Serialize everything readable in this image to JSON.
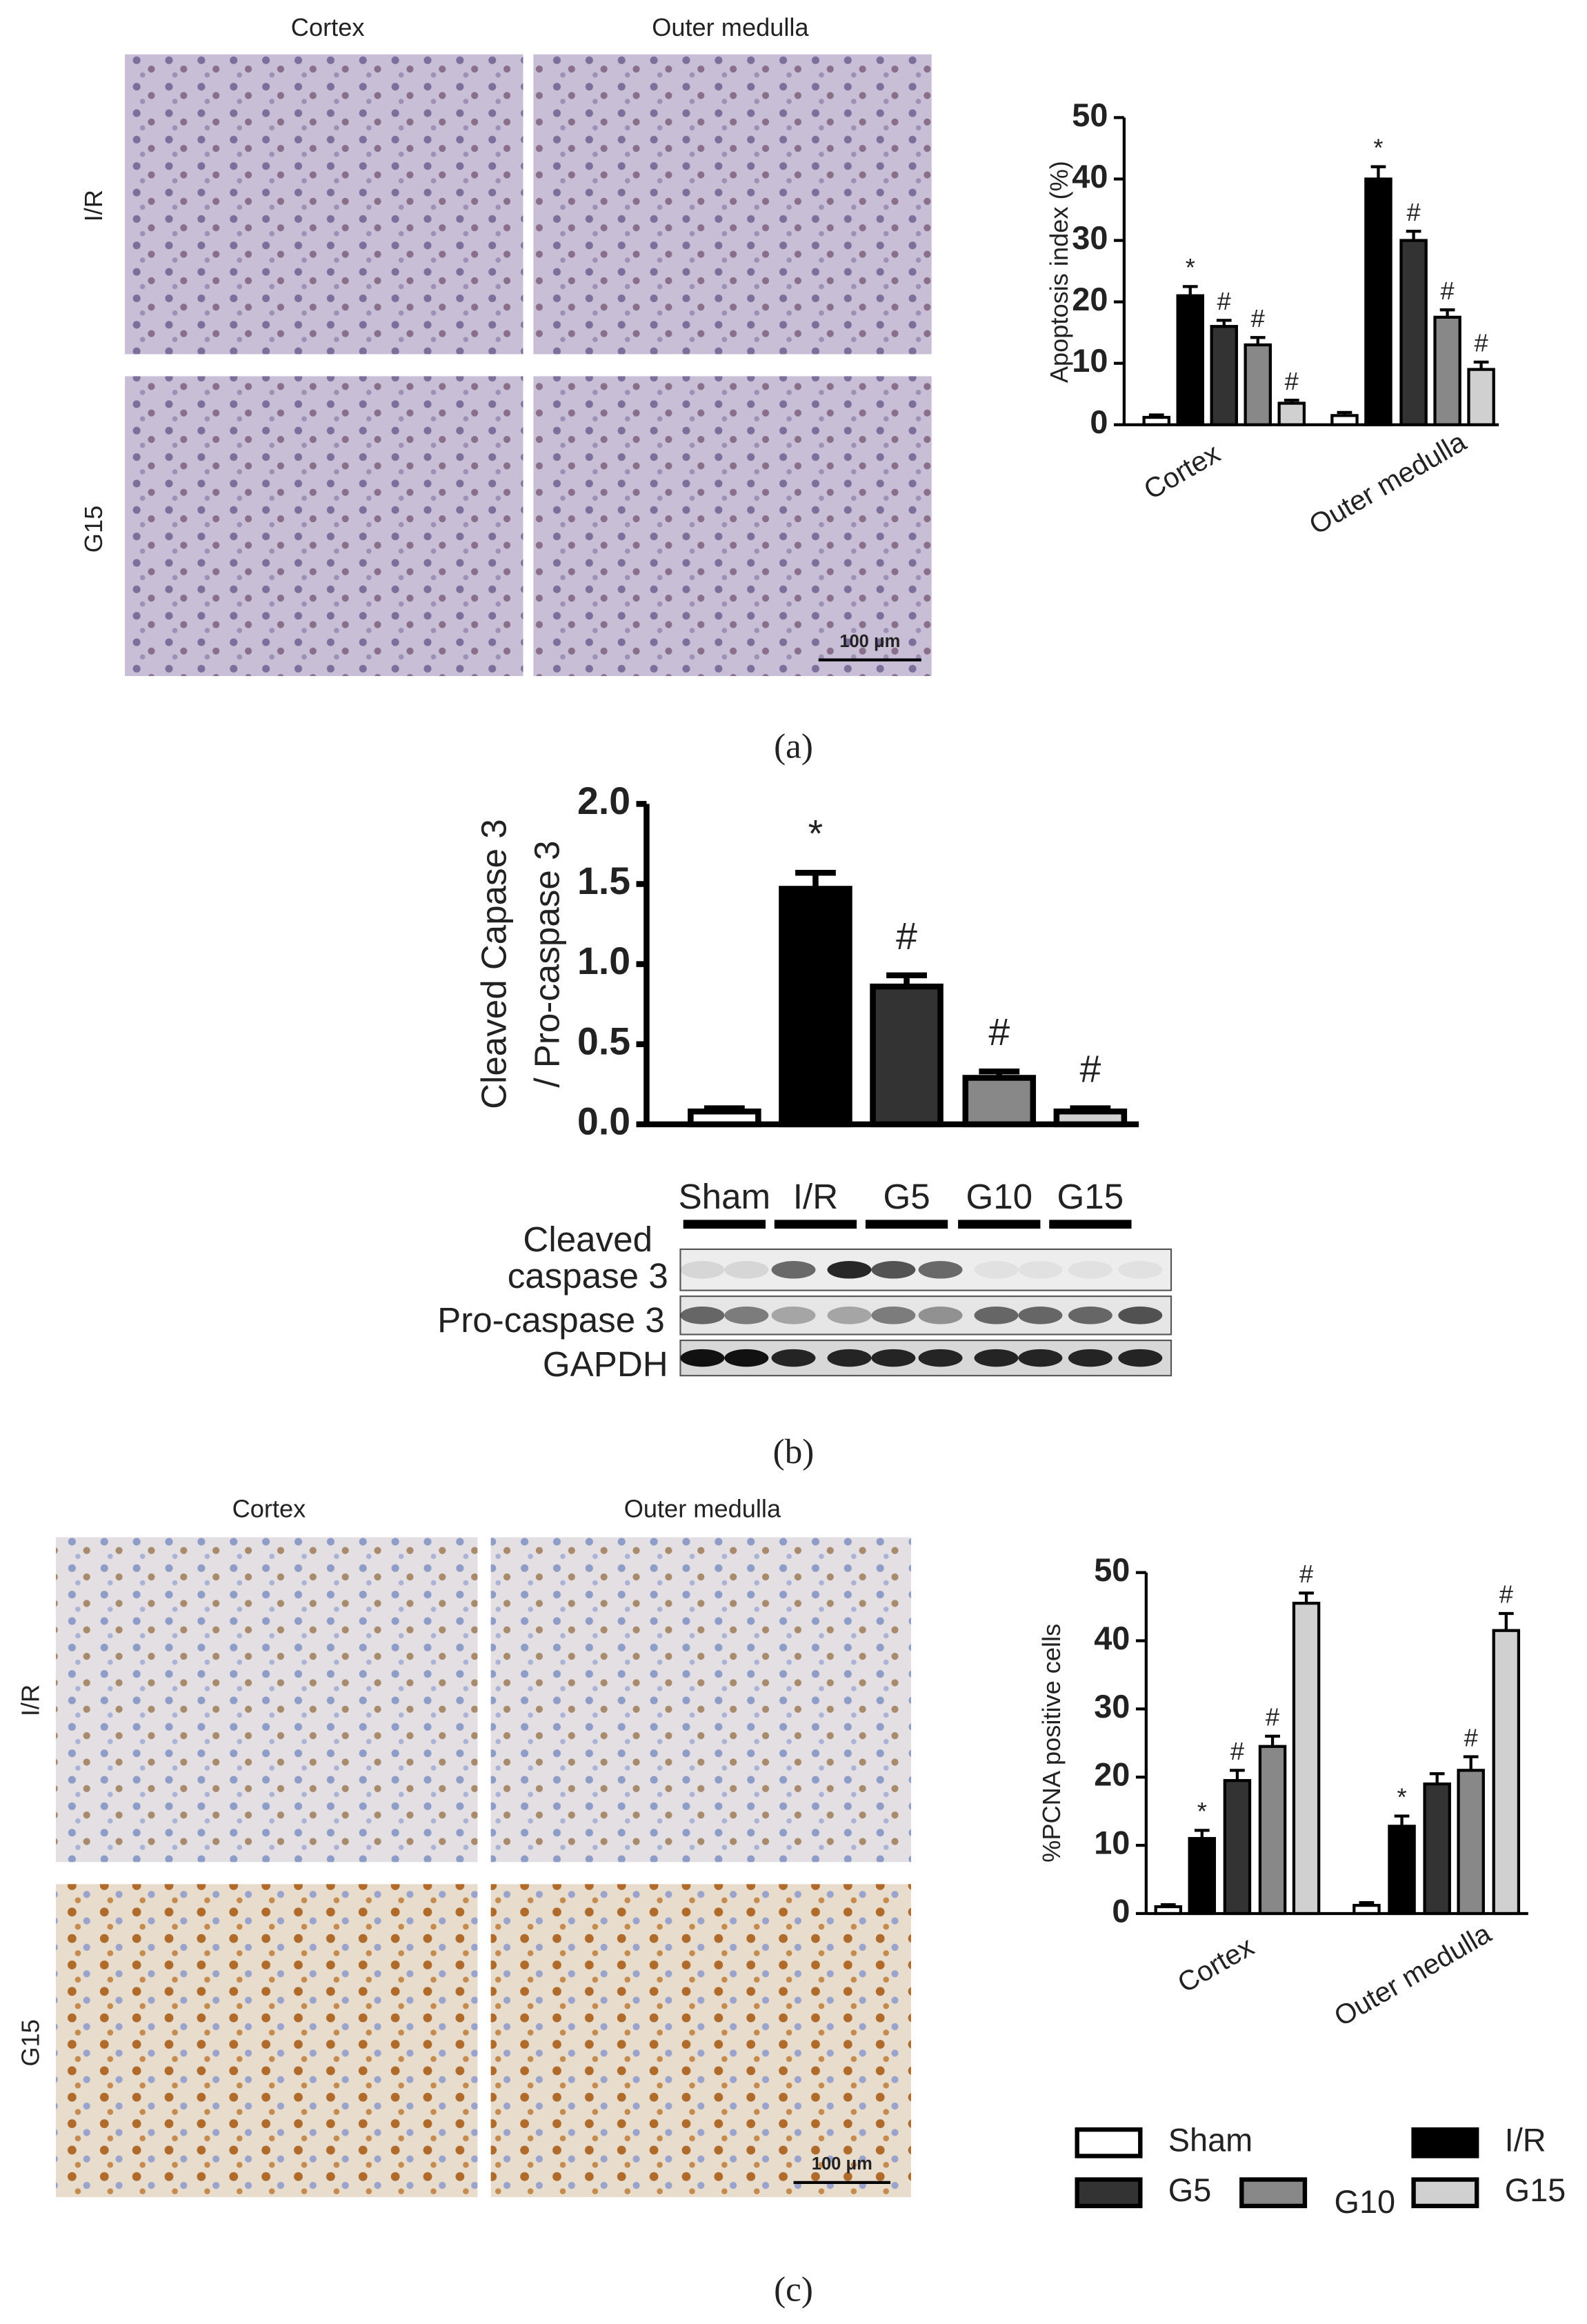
{
  "figure": {
    "a": {
      "columns": [
        "Cortex",
        "Outer medulla"
      ],
      "rows": [
        "I/R",
        "G15"
      ],
      "scale_bar": "100 μm",
      "label": "(a)"
    },
    "b": {
      "blot_rows": [
        "Cleaved",
        "caspase 3",
        "Pro-caspase 3",
        "GAPDH"
      ],
      "label": "(b)"
    },
    "c": {
      "columns": [
        "Cortex",
        "Outer medulla"
      ],
      "rows": [
        "I/R",
        "G15"
      ],
      "scale_bar": "100 μm",
      "label": "(c)"
    }
  },
  "chart_data": [
    {
      "type": "grouped-bar",
      "ylabel": "Apoptosis index (%)",
      "categories": [
        "Cortex",
        "Outer medulla"
      ],
      "ylim": [
        0,
        50
      ],
      "yticks": [
        0,
        10,
        20,
        30,
        40,
        50
      ],
      "series": [
        {
          "color": "#ffffff",
          "values": [
            1.2,
            1.5
          ],
          "errors": [
            0.4,
            0.5
          ]
        },
        {
          "color": "#000000",
          "values": [
            21,
            40
          ],
          "errors": [
            1.5,
            2
          ],
          "markers": [
            "*",
            "*"
          ]
        },
        {
          "color": "#333333",
          "values": [
            16,
            30
          ],
          "errors": [
            1,
            1.5
          ],
          "markers": [
            "#",
            "#"
          ]
        },
        {
          "color": "#888888",
          "values": [
            13,
            17.5
          ],
          "errors": [
            1.2,
            1.2
          ],
          "markers": [
            "#",
            "#"
          ]
        },
        {
          "color": "#d0d0d0",
          "values": [
            3.5,
            9
          ],
          "errors": [
            0.5,
            1.2
          ],
          "markers": [
            "#",
            "#"
          ]
        }
      ]
    },
    {
      "type": "bar",
      "ylabel": [
        "Cleaved Capase 3",
        "/ Pro-caspase 3"
      ],
      "categories": [
        "Sham",
        "I/R",
        "G5",
        "G10",
        "G15"
      ],
      "values": [
        0.08,
        1.47,
        0.86,
        0.29,
        0.08
      ],
      "errors": [
        0.02,
        0.1,
        0.07,
        0.04,
        0.02
      ],
      "colors": [
        "#ffffff",
        "#000000",
        "#333333",
        "#888888",
        "#d0d0d0"
      ],
      "markers": [
        null,
        "*",
        "#",
        "#",
        "#"
      ],
      "ylim": [
        0,
        2
      ],
      "yticks": [
        {
          "value": 0,
          "label": "0.0"
        },
        {
          "value": 0.5,
          "label": "0.5"
        },
        {
          "value": 1,
          "label": "1.0"
        },
        {
          "value": 1.5,
          "label": "1.5"
        },
        {
          "value": 2,
          "label": "2.0"
        }
      ]
    },
    {
      "type": "grouped-bar",
      "ylabel": "%PCNA positive cells",
      "categories": [
        "Cortex",
        "Outer medulla"
      ],
      "ylim": [
        0,
        50
      ],
      "yticks": [
        0,
        10,
        20,
        30,
        40,
        50
      ],
      "series": [
        {
          "name": "Sham",
          "color": "#ffffff",
          "values": [
            1,
            1.2
          ],
          "errors": [
            0.3,
            0.4
          ]
        },
        {
          "name": "I/R",
          "color": "#000000",
          "values": [
            11,
            12.8
          ],
          "errors": [
            1.2,
            1.5
          ],
          "markers": [
            "*",
            "*"
          ]
        },
        {
          "name": "G5",
          "color": "#333333",
          "values": [
            19.5,
            19
          ],
          "errors": [
            1.5,
            1.5
          ],
          "markers": [
            "#",
            null
          ]
        },
        {
          "name": "G10",
          "color": "#888888",
          "values": [
            24.5,
            21
          ],
          "errors": [
            1.5,
            2
          ],
          "markers": [
            "#",
            "#"
          ]
        },
        {
          "name": "G15",
          "color": "#d0d0d0",
          "values": [
            45.5,
            41.5
          ],
          "errors": [
            1.5,
            2.5
          ],
          "markers": [
            "#",
            "#"
          ]
        }
      ]
    }
  ]
}
